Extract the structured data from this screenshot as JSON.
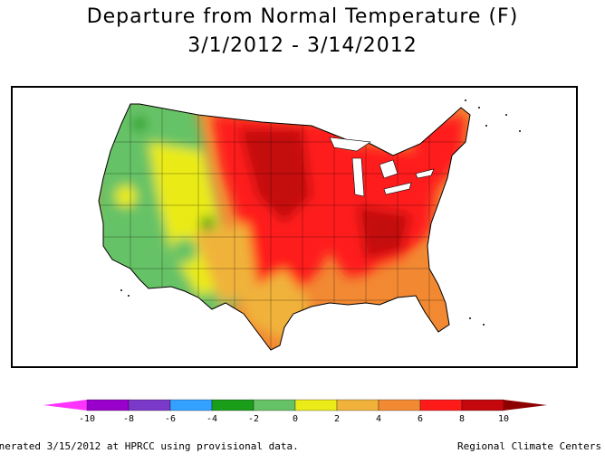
{
  "title": "Departure from Normal Temperature (F)",
  "date_range": "3/1/2012 - 3/14/2012",
  "legend": {
    "colors": [
      "#ff33ff",
      "#9900cc",
      "#7a39c9",
      "#33a1ff",
      "#1a9e1a",
      "#66c266",
      "#eaeb19",
      "#f0b23a",
      "#f28933",
      "#ff1a1a",
      "#c4080d",
      "#8c0000"
    ],
    "tick_labels": [
      "-10",
      "-8",
      "-6",
      "-4",
      "-2",
      "0",
      "2",
      "4",
      "6",
      "8",
      "10"
    ]
  },
  "footer": {
    "left": "enerated 3/15/2012 at HPRCC using provisional data.",
    "right": "Regional Climate Centers"
  }
}
